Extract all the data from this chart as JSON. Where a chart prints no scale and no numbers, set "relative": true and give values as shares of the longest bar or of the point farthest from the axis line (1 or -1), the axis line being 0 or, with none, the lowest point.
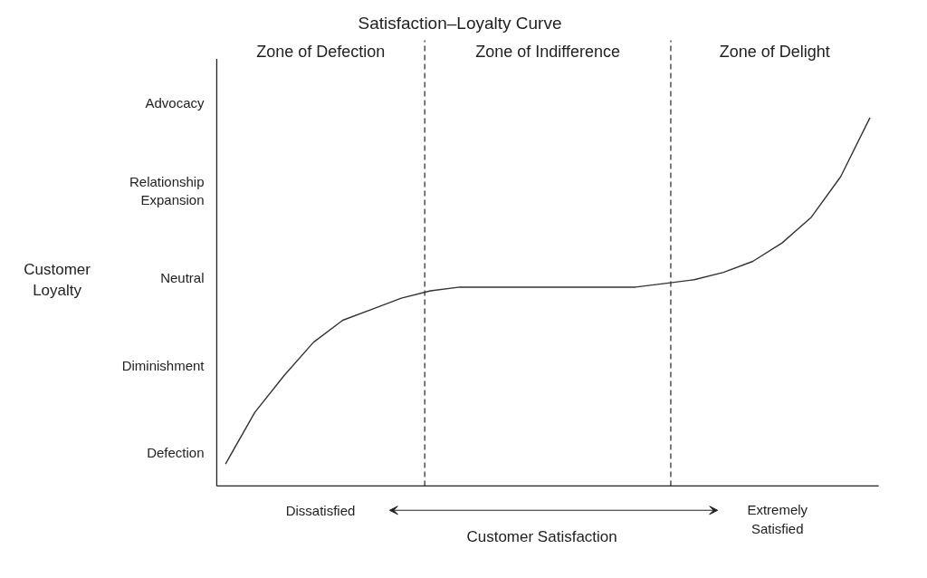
{
  "chart_data": {
    "type": "line",
    "title": "Satisfaction–Loyalty Curve",
    "xlabel": "Customer Satisfaction",
    "relative": true,
    "categories": [
      null,
      null,
      null,
      null,
      null,
      null,
      null,
      null,
      null,
      null,
      null,
      null,
      null,
      null,
      null,
      null,
      null,
      null,
      null,
      null,
      null,
      null,
      null
    ],
    "series": [
      {
        "color": "#333333",
        "values": [
          0.06,
          0.2,
          0.3,
          0.39,
          0.45,
          0.48,
          0.51,
          0.53,
          0.54,
          0.54,
          0.54,
          0.54,
          0.54,
          0.54,
          0.54,
          0.55,
          0.56,
          0.58,
          0.61,
          0.66,
          0.73,
          0.84,
          1
        ]
      }
    ],
    "annotations": [
      "Zone of Defection",
      "Zone of Indifference",
      "Zone of Delight",
      "Customer Loyalty",
      "Defection",
      "Diminishment",
      "Neutral",
      "Relationship Expansion",
      "Advocacy",
      "Dissatisfied",
      "Extremely Satisfied"
    ],
    "grid": false
  }
}
